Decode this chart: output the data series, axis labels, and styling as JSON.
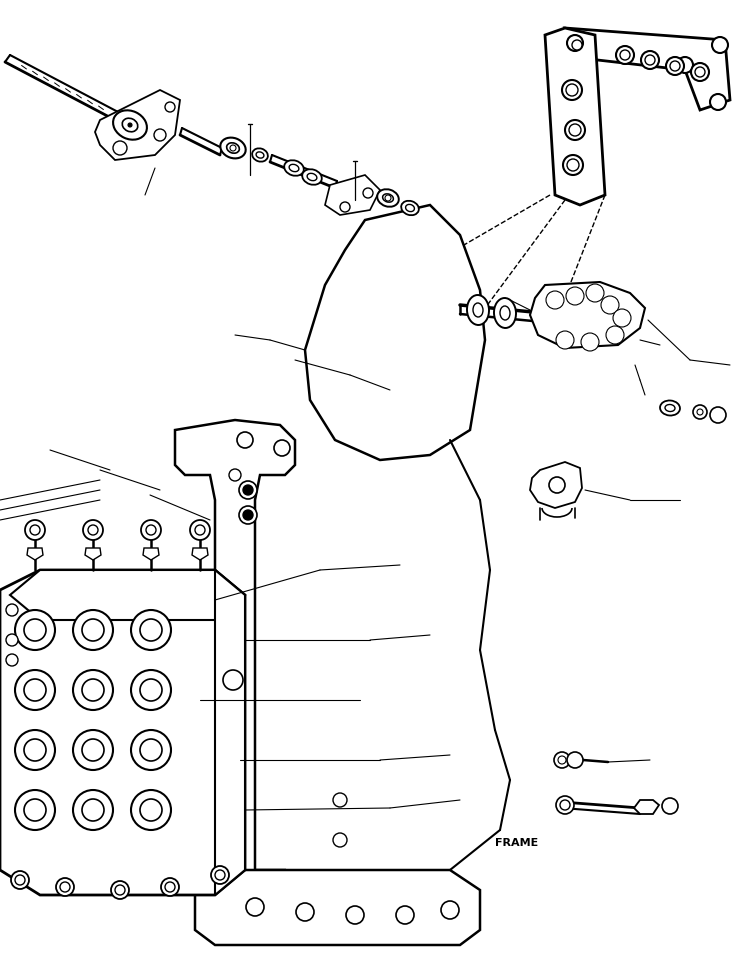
{
  "background_color": "#ffffff",
  "line_color": "#000000",
  "frame_label": "FRAME",
  "figsize": [
    7.5,
    9.61
  ],
  "dpi": 100
}
